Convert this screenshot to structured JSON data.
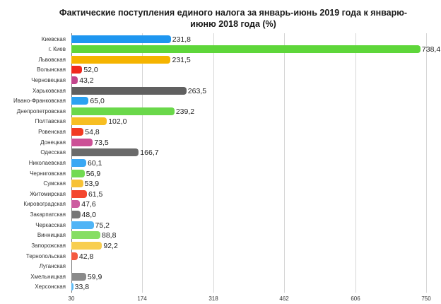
{
  "chart_data": {
    "type": "bar",
    "orientation": "horizontal",
    "title": "Фактические поступления единого налога за январь-июнь 2019 года к январю-июню 2018 года (%)",
    "title_lines": [
      "Фактические поступления единого налога за январь-июнь 2019 года к январю-",
      "июню 2018 года (%)"
    ],
    "xlabel": "",
    "ylabel": "",
    "xlim": [
      30,
      750
    ],
    "x_ticks": [
      "30",
      "174",
      "318",
      "462",
      "606",
      "750"
    ],
    "grid": true,
    "legend": null,
    "categories": [
      "Киевская",
      "г. Киев",
      "Львовская",
      "Волынская",
      "Черновецкая",
      "Харьковская",
      "Ивано-Франковская",
      "Днепропетровская",
      "Полтавская",
      "Ровенская",
      "Донецкая",
      "Одесская",
      "Николаевская",
      "Черниговская",
      "Сумская",
      "Житомирская",
      "Кировоградская",
      "Закарпатская",
      "Черкасская",
      "Винницкая",
      "Запорожская",
      "Тернопольская",
      "Луганская",
      "Хмельницкая",
      "Херсонская"
    ],
    "values": [
      231.8,
      738.4,
      231.5,
      52.0,
      43.2,
      263.5,
      65.0,
      239.2,
      102.0,
      54.8,
      73.5,
      166.7,
      60.1,
      56.9,
      53.9,
      61.5,
      47.6,
      48.0,
      75.2,
      88.8,
      92.2,
      42.8,
      null,
      59.9,
      33.8
    ],
    "value_labels": [
      "231,8",
      "738,4",
      "231,5",
      "52,0",
      "43,2",
      "263,5",
      "65,0",
      "239,2",
      "102,0",
      "54,8",
      "73,5",
      "166,7",
      "60,1",
      "56,9",
      "53,9",
      "61,5",
      "47,6",
      "48,0",
      "75,2",
      "88,8",
      "92,2",
      "42,8",
      "",
      "59,9",
      "33,8"
    ],
    "colors": [
      "#1e96f0",
      "#5ed63a",
      "#f5b400",
      "#f0281e",
      "#c2458c",
      "#606060",
      "#2ba2f2",
      "#6ad84a",
      "#f7be22",
      "#f23a22",
      "#cc5096",
      "#6a6a6a",
      "#3aa8f4",
      "#72da52",
      "#f7c236",
      "#f4462e",
      "#cc5ca0",
      "#767676",
      "#50b4f6",
      "#86de64",
      "#f8ce50",
      "#f45a40",
      "#cccccc",
      "#8a8a8a",
      "#60bcf6"
    ]
  }
}
